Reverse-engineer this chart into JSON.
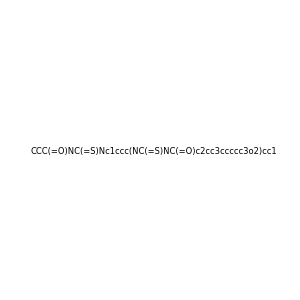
{
  "smiles": "CCC(=O)NC(=S)Nc1ccc(NC(=S)NC(=O)c2cc3ccccc3o2)cc1",
  "image_size": 300,
  "background_color": "#f0f0f0",
  "title": ""
}
